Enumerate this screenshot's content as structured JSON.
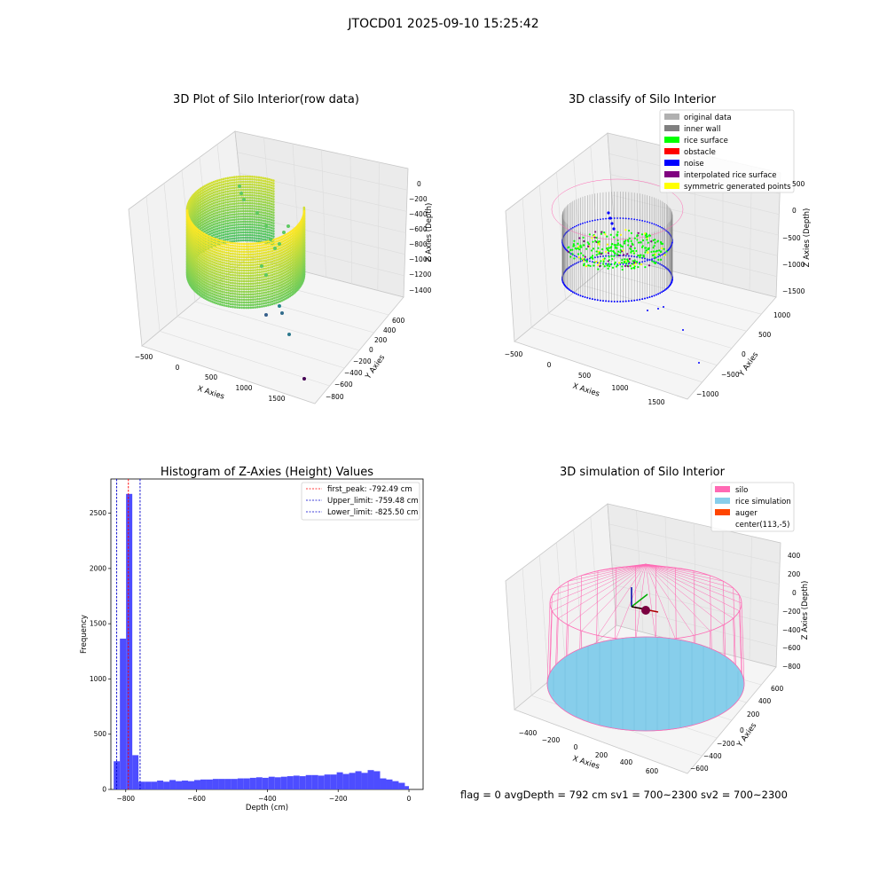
{
  "suptitle": "JTOCD01 2025-09-10 15:25:42",
  "footer": "flag = 0     avgDepth = 792 cm  sv1 = 700~2300  sv2 = 700~2300",
  "colors": {
    "bar": "#4d4dff",
    "first_peak": "#ff0000",
    "limit": "#0000cc",
    "silo": "#ff69b4",
    "rice_sim": "#87ceeb",
    "auger": "#ff4500",
    "original": "#b0b0b0",
    "inner_wall": "#808080",
    "rice_surface": "#00ff00",
    "obstacle": "#ff0000",
    "noise": "#0000ff",
    "interp": "#800080",
    "symmetric": "#ffff00"
  },
  "chart_data": [
    {
      "type": "scatter3d",
      "title": "3D Plot of Silo Interior(row data)",
      "xlabel": "X Axies",
      "ylabel": "Y Axies",
      "zlabel": "Z Axies (Depth)",
      "xticks": [
        "−500",
        "0",
        "500",
        "1000",
        "1500"
      ],
      "yticks": [
        "−800",
        "−600",
        "−400",
        "−200",
        "0",
        "200",
        "400",
        "600"
      ],
      "zticks": [
        "−1400",
        "−1200",
        "−1000",
        "−800",
        "−600",
        "−400",
        "−200",
        "0"
      ],
      "colormap": "viridis"
    },
    {
      "type": "scatter3d",
      "title": "3D classify of Silo Interior",
      "xlabel": "X Axies",
      "ylabel": "Y Axies",
      "zlabel": "Z Axies (Depth)",
      "xticks": [
        "−500",
        "0",
        "500",
        "1000",
        "1500"
      ],
      "yticks": [
        "−1000",
        "−500",
        "0",
        "500",
        "1000"
      ],
      "zticks": [
        "−1500",
        "−1000",
        "−500",
        "0",
        "500"
      ],
      "legend": [
        "original data",
        "inner wall",
        "rice surface",
        "obstacle",
        "noise",
        "interpolated rice surface",
        "symmetric generated points"
      ],
      "legend_placement": "top-right"
    },
    {
      "type": "bar",
      "title": "Histogram of Z-Axies (Height) Values",
      "xlabel": "Depth (cm)",
      "ylabel": "Frequency",
      "xlim": [
        -842,
        40
      ],
      "ylim": [
        0,
        2810
      ],
      "bin_edges": [
        -834,
        -816.5,
        -799,
        -781.5,
        -764,
        -746.5,
        -729,
        -711.5,
        -694,
        -676.5,
        -659,
        -641.5,
        -624,
        -606.5,
        -589,
        -571.5,
        -554,
        -536.5,
        -519,
        -501.5,
        -484,
        -466.5,
        -449,
        -431.5,
        -414,
        -396.5,
        -379,
        -361.5,
        -344,
        -326.5,
        -309,
        -291.5,
        -274,
        -256.5,
        -239,
        -221.5,
        -204,
        -186.5,
        -169,
        -151.5,
        -134,
        -116.5,
        -99,
        -81.5,
        -64,
        -46.5,
        -29,
        -11.5,
        0
      ],
      "values": [
        255,
        1365,
        2675,
        310,
        70,
        70,
        70,
        80,
        70,
        85,
        75,
        80,
        75,
        85,
        90,
        90,
        95,
        95,
        95,
        95,
        100,
        100,
        105,
        110,
        105,
        115,
        110,
        115,
        120,
        125,
        120,
        130,
        130,
        125,
        135,
        135,
        155,
        140,
        150,
        165,
        150,
        175,
        165,
        100,
        90,
        75,
        60,
        30
      ],
      "xticks": [
        -800,
        -600,
        -400,
        -200,
        0
      ],
      "xtick_labels": [
        "−800",
        "−600",
        "−400",
        "−200",
        "0"
      ],
      "yticks": [
        0,
        500,
        1000,
        1500,
        2000,
        2500
      ],
      "ytick_labels": [
        "0",
        "500",
        "1000",
        "1500",
        "2000",
        "2500"
      ],
      "lines": [
        {
          "label": "first_peak: -792.49 cm",
          "x": -792.49,
          "color": "#ff0000"
        },
        {
          "label": "Upper_limit: -759.48 cm",
          "x": -759.48,
          "color": "#0000cc"
        },
        {
          "label": "Lower_limit: -825.50 cm",
          "x": -825.5,
          "color": "#0000cc"
        }
      ],
      "legend_placement": "top-right"
    },
    {
      "type": "surface3d",
      "title": "3D simulation of Silo Interior",
      "xlabel": "X Axies",
      "ylabel": "Y Axies",
      "zlabel": "Z Axies (Depth)",
      "xticks": [
        "−400",
        "−200",
        "0",
        "200",
        "400",
        "600"
      ],
      "yticks": [
        "−600",
        "−400",
        "−200",
        "0",
        "200",
        "400",
        "600"
      ],
      "zticks": [
        "−800",
        "−600",
        "−400",
        "−200",
        "0",
        "200",
        "400"
      ],
      "legend": [
        "silo",
        "rice simulation",
        "auger",
        "center(113,-5)"
      ],
      "legend_placement": "top-right"
    }
  ]
}
